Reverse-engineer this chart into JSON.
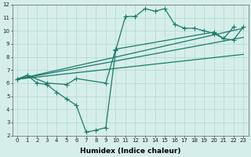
{
  "background_color": "#d6eeea",
  "grid_color": "#b0d8d0",
  "line_color": "#1a7a6a",
  "line_width": 0.9,
  "marker_size": 2.2,
  "xlim": [
    -0.5,
    23.5
  ],
  "ylim": [
    2,
    12
  ],
  "xticks": [
    0,
    1,
    2,
    3,
    4,
    5,
    6,
    7,
    8,
    9,
    10,
    11,
    12,
    13,
    14,
    15,
    16,
    17,
    18,
    19,
    20,
    21,
    22,
    23
  ],
  "yticks": [
    2,
    3,
    4,
    5,
    6,
    7,
    8,
    9,
    10,
    11,
    12
  ],
  "xlabel": "Humidex (Indice chaleur)",
  "xlabel_fontsize": 6.5,
  "tick_fontsize": 5.0,
  "curve1_x": [
    0,
    1,
    2,
    3,
    4,
    5,
    6,
    7,
    8,
    9,
    10,
    11,
    12,
    13,
    14,
    15,
    16,
    17,
    18,
    19,
    20,
    21,
    22
  ],
  "curve1_y": [
    6.3,
    6.6,
    6.0,
    5.9,
    5.3,
    4.8,
    4.3,
    2.25,
    2.4,
    2.6,
    8.5,
    11.1,
    11.1,
    11.7,
    11.5,
    11.7,
    10.5,
    10.2,
    10.2,
    10.0,
    9.8,
    9.4,
    10.3
  ],
  "curve2_x": [
    0,
    1,
    3,
    5,
    6,
    9,
    10,
    20,
    21,
    22,
    23
  ],
  "curve2_y": [
    6.3,
    6.6,
    6.0,
    5.9,
    6.35,
    6.0,
    8.6,
    9.9,
    9.4,
    9.3,
    10.3
  ],
  "line1_x": [
    0,
    23
  ],
  "line1_y": [
    6.3,
    10.2
  ],
  "line2_x": [
    0,
    23
  ],
  "line2_y": [
    6.3,
    9.5
  ],
  "line3_x": [
    0,
    23
  ],
  "line3_y": [
    6.3,
    8.2
  ]
}
